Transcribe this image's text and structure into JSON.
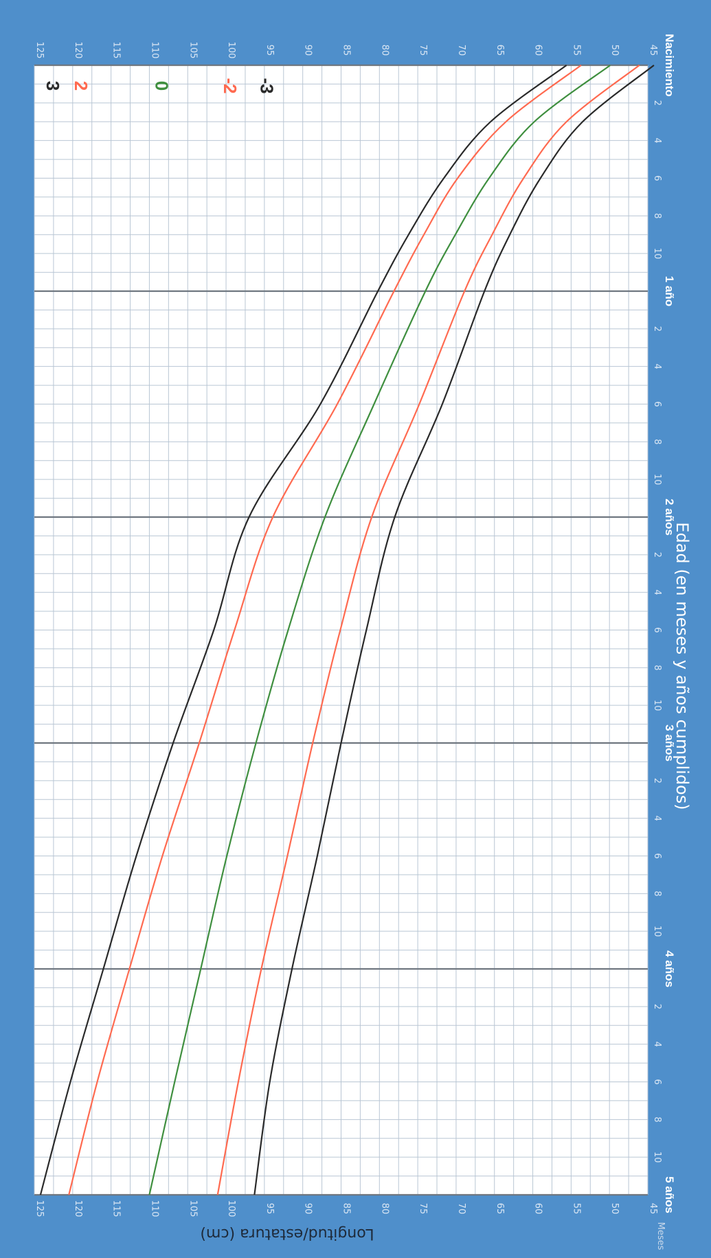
{
  "chart_data": {
    "type": "line",
    "orientation": "rotated 90° clockwise (age axis runs top to bottom)",
    "xlabel": "Edad (en meses y años cumplidos)",
    "ylabel": "Longitud/estatura (cm)",
    "meses_label": "Meses",
    "xlim": [
      0,
      60
    ],
    "ylim": [
      45,
      125
    ],
    "y_ticks": [
      45,
      50,
      55,
      60,
      65,
      70,
      75,
      80,
      85,
      90,
      95,
      100,
      105,
      110,
      115,
      120,
      125
    ],
    "major_x_labels": [
      {
        "x": 0,
        "label": "Nacimiento"
      },
      {
        "x": 12,
        "label": "1 año"
      },
      {
        "x": 24,
        "label": "2 años"
      },
      {
        "x": 36,
        "label": "3 años"
      },
      {
        "x": 48,
        "label": "4 años"
      },
      {
        "x": 60,
        "label": "5 años"
      }
    ],
    "minor_x_labels": [
      "2",
      "4",
      "6",
      "8",
      "10"
    ],
    "grid": true,
    "legend": "series labels printed at end of each curve",
    "colors": {
      "frame": "#4f8fcb",
      "black": "#2a2a2a",
      "red": "#ff6a50",
      "green": "#3f8f3f"
    },
    "x": [
      0,
      3,
      6,
      9,
      12,
      18,
      24,
      30,
      36,
      42,
      48,
      54,
      60
    ],
    "series": [
      {
        "name": "3",
        "color": "#2a2a2a",
        "values": [
          55.6,
          65.5,
          71.6,
          76.2,
          80.2,
          87.7,
          97.0,
          101.6,
          106.9,
          111.7,
          116.0,
          120.3,
          124.2
        ]
      },
      {
        "name": "2",
        "color": "#ff6a50",
        "values": [
          53.7,
          63.5,
          69.8,
          74.2,
          78.1,
          85.5,
          93.9,
          98.9,
          103.5,
          108.3,
          112.6,
          116.8,
          120.5
        ]
      },
      {
        "name": "0",
        "color": "#3f8f3f",
        "values": [
          49.9,
          59.8,
          65.7,
          70.1,
          74.0,
          80.7,
          87.1,
          91.9,
          96.1,
          99.9,
          103.3,
          106.7,
          110.0
        ]
      },
      {
        "name": "-2",
        "color": "#ff6a50",
        "values": [
          46.1,
          55.6,
          61.2,
          65.3,
          68.9,
          74.8,
          81.0,
          85.1,
          88.7,
          92.0,
          95.4,
          98.4,
          101.1
        ]
      },
      {
        "name": "-3",
        "color": "#2a2a2a",
        "values": [
          44.2,
          53.5,
          59.0,
          63.0,
          66.3,
          71.8,
          78.0,
          81.7,
          85.0,
          88.1,
          91.4,
          94.3,
          96.3
        ]
      }
    ]
  }
}
